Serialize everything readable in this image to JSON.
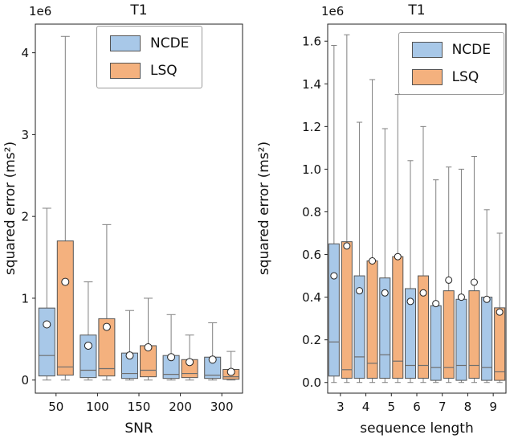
{
  "colors": {
    "ncde": "#a8c8e8",
    "lsq": "#f4b17e",
    "box_edge": "#555555",
    "whisker": "#808080",
    "median": "#6e6e6e",
    "mean_marker_fill": "#ffffff",
    "mean_marker_edge": "#222222",
    "axis": "#222222",
    "text": "#111111"
  },
  "chart_data": [
    {
      "type": "boxplot",
      "title": "T1",
      "xlabel": "SNR",
      "ylabel": "squared error (ms²)",
      "y_offset_text": "1e6",
      "legend": [
        {
          "label": "NCDE",
          "color_key": "ncde"
        },
        {
          "label": "LSQ",
          "color_key": "lsq"
        }
      ],
      "categories": [
        "50",
        "100",
        "150",
        "200",
        "300"
      ],
      "ylim": [
        -0.16,
        4.35
      ],
      "ytick_values": [
        0,
        1,
        2,
        3,
        4
      ],
      "ytick_labels": [
        "0",
        "1",
        "2",
        "3",
        "4"
      ],
      "grid": false,
      "series": [
        {
          "name": "NCDE",
          "color_key": "ncde",
          "boxes": [
            {
              "whislo": 0,
              "q1": 0.05,
              "med": 0.3,
              "q3": 0.88,
              "whishi": 2.1,
              "mean": 0.68
            },
            {
              "whislo": 0,
              "q1": 0.03,
              "med": 0.12,
              "q3": 0.55,
              "whishi": 1.2,
              "mean": 0.42
            },
            {
              "whislo": 0,
              "q1": 0.02,
              "med": 0.08,
              "q3": 0.33,
              "whishi": 0.85,
              "mean": 0.3
            },
            {
              "whislo": 0,
              "q1": 0.02,
              "med": 0.07,
              "q3": 0.3,
              "whishi": 0.8,
              "mean": 0.28
            },
            {
              "whislo": 0,
              "q1": 0.02,
              "med": 0.06,
              "q3": 0.28,
              "whishi": 0.7,
              "mean": 0.25
            }
          ]
        },
        {
          "name": "LSQ",
          "color_key": "lsq",
          "boxes": [
            {
              "whislo": 0,
              "q1": 0.06,
              "med": 0.16,
              "q3": 1.7,
              "whishi": 4.2,
              "mean": 1.2
            },
            {
              "whislo": 0,
              "q1": 0.05,
              "med": 0.14,
              "q3": 0.75,
              "whishi": 1.9,
              "mean": 0.65
            },
            {
              "whislo": 0,
              "q1": 0.04,
              "med": 0.12,
              "q3": 0.42,
              "whishi": 1.0,
              "mean": 0.4
            },
            {
              "whislo": 0,
              "q1": 0.03,
              "med": 0.08,
              "q3": 0.25,
              "whishi": 0.55,
              "mean": 0.22
            },
            {
              "whislo": 0,
              "q1": 0.01,
              "med": 0.04,
              "q3": 0.13,
              "whishi": 0.35,
              "mean": 0.1
            }
          ]
        }
      ]
    },
    {
      "type": "boxplot",
      "title": "T1",
      "xlabel": "sequence length",
      "ylabel": "squared error (ms²)",
      "y_offset_text": "1e6",
      "legend": [
        {
          "label": "NCDE",
          "color_key": "ncde"
        },
        {
          "label": "LSQ",
          "color_key": "lsq"
        }
      ],
      "categories": [
        "3",
        "4",
        "5",
        "6",
        "7",
        "8",
        "9"
      ],
      "ylim": [
        -0.05,
        1.68
      ],
      "ytick_values": [
        0,
        0.2,
        0.4,
        0.6,
        0.8,
        1.0,
        1.2,
        1.4,
        1.6
      ],
      "ytick_labels": [
        "0.0",
        "0.2",
        "0.4",
        "0.6",
        "0.8",
        "1.0",
        "1.2",
        "1.4",
        "1.6"
      ],
      "grid": false,
      "series": [
        {
          "name": "NCDE",
          "color_key": "ncde",
          "boxes": [
            {
              "whislo": 0,
              "q1": 0.03,
              "med": 0.19,
              "q3": 0.65,
              "whishi": 1.58,
              "mean": 0.5
            },
            {
              "whislo": 0,
              "q1": 0.02,
              "med": 0.12,
              "q3": 0.5,
              "whishi": 1.22,
              "mean": 0.43
            },
            {
              "whislo": 0,
              "q1": 0.02,
              "med": 0.13,
              "q3": 0.49,
              "whishi": 1.19,
              "mean": 0.42
            },
            {
              "whislo": 0,
              "q1": 0.02,
              "med": 0.08,
              "q3": 0.44,
              "whishi": 1.04,
              "mean": 0.38
            },
            {
              "whislo": 0,
              "q1": 0.01,
              "med": 0.07,
              "q3": 0.36,
              "whishi": 0.95,
              "mean": 0.37
            },
            {
              "whislo": 0,
              "q1": 0.01,
              "med": 0.08,
              "q3": 0.39,
              "whishi": 1.0,
              "mean": 0.4
            },
            {
              "whislo": 0,
              "q1": 0.01,
              "med": 0.07,
              "q3": 0.4,
              "whishi": 0.81,
              "mean": 0.39
            }
          ]
        },
        {
          "name": "LSQ",
          "color_key": "lsq",
          "boxes": [
            {
              "whislo": 0,
              "q1": 0.02,
              "med": 0.06,
              "q3": 0.66,
              "whishi": 1.63,
              "mean": 0.64
            },
            {
              "whislo": 0,
              "q1": 0.02,
              "med": 0.09,
              "q3": 0.57,
              "whishi": 1.42,
              "mean": 0.57
            },
            {
              "whislo": 0,
              "q1": 0.02,
              "med": 0.1,
              "q3": 0.59,
              "whishi": 1.35,
              "mean": 0.59
            },
            {
              "whislo": 0,
              "q1": 0.02,
              "med": 0.08,
              "q3": 0.5,
              "whishi": 1.2,
              "mean": 0.42
            },
            {
              "whislo": 0,
              "q1": 0.02,
              "med": 0.07,
              "q3": 0.43,
              "whishi": 1.01,
              "mean": 0.48
            },
            {
              "whislo": 0,
              "q1": 0.02,
              "med": 0.08,
              "q3": 0.43,
              "whishi": 1.06,
              "mean": 0.47
            },
            {
              "whislo": 0,
              "q1": 0.01,
              "med": 0.05,
              "q3": 0.35,
              "whishi": 0.7,
              "mean": 0.33
            }
          ]
        }
      ]
    }
  ]
}
